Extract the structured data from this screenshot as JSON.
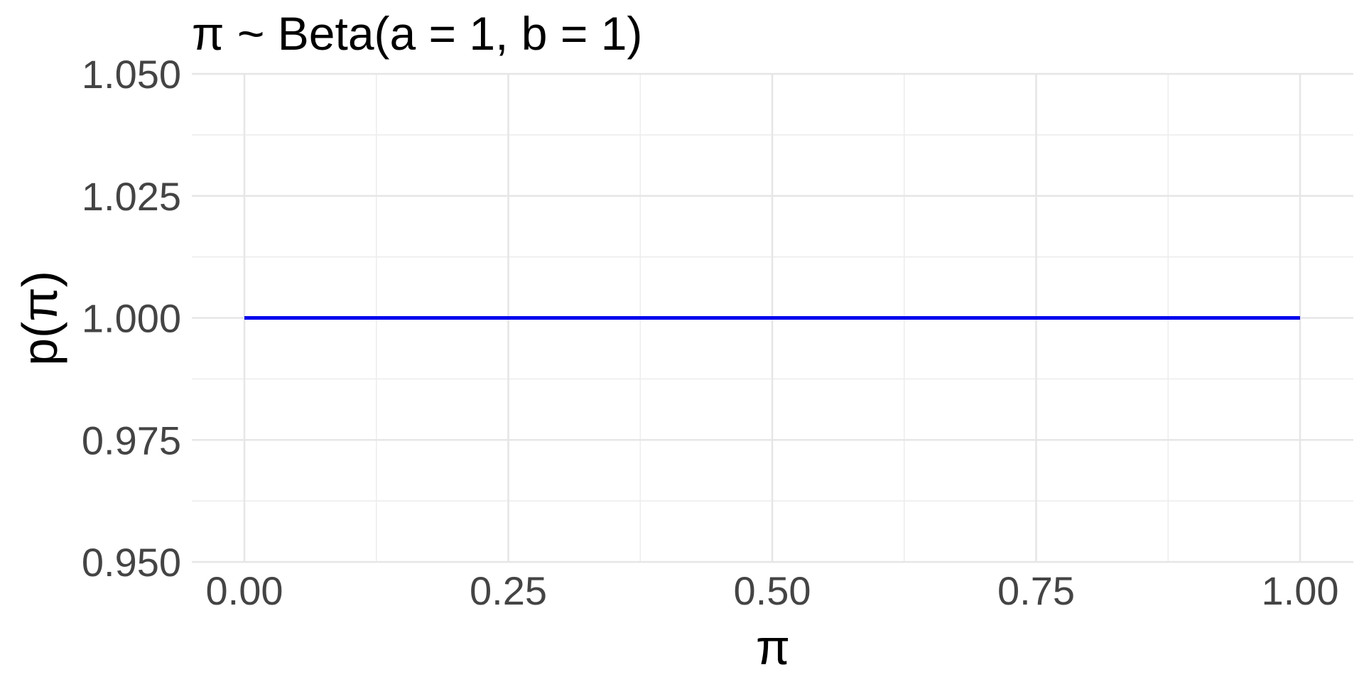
{
  "chart_data": {
    "type": "line",
    "title": "π ~ Beta(a = 1, b = 1)",
    "xlabel": "π",
    "ylabel": "p(π)",
    "xlim": [
      0,
      1
    ],
    "ylim": [
      0.95,
      1.05
    ],
    "x_ticks": [
      0,
      0.25,
      0.5,
      0.75,
      1
    ],
    "x_tick_labels": [
      "0.00",
      "0.25",
      "0.50",
      "0.75",
      "1.00"
    ],
    "y_ticks": [
      0.95,
      0.975,
      1,
      1.025,
      1.05
    ],
    "y_tick_labels": [
      "0.950",
      "0.975",
      "1.000",
      "1.025",
      "1.050"
    ],
    "grid": true,
    "series": [
      {
        "color": "#0000ee",
        "x": [
          0,
          1
        ],
        "y": [
          1,
          1
        ]
      }
    ]
  }
}
